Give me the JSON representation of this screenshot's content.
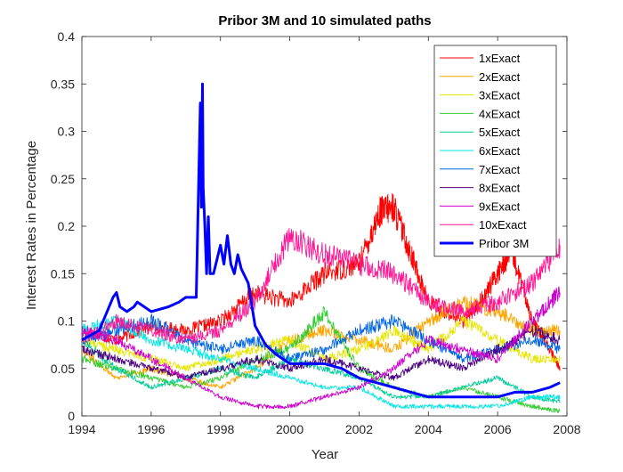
{
  "chart_data": {
    "type": "line",
    "title": "Pribor 3M and 10 simulated paths",
    "xlabel": "Year",
    "ylabel": "Interest Rates in Percentage",
    "xlim": [
      1994,
      2008
    ],
    "ylim": [
      0,
      0.4
    ],
    "xticks": [
      "1994",
      "1996",
      "1998",
      "2000",
      "2002",
      "2004",
      "2006",
      "2008"
    ],
    "yticks": [
      "0",
      "0.05",
      "0.1",
      "0.15",
      "0.2",
      "0.25",
      "0.3",
      "0.35",
      "0.4"
    ],
    "grid": false,
    "legend_position": "top-right",
    "series": [
      {
        "name": "1xExact",
        "color": "#ff0000",
        "line_width": "thin",
        "x": [
          1994.0,
          1995.0,
          1996.0,
          1997.0,
          1998.0,
          1999.0,
          2000.0,
          2001.0,
          2002.0,
          2002.6,
          2003.0,
          2003.5,
          2004.0,
          2005.0,
          2005.5,
          2006.0,
          2006.4,
          2007.0,
          2007.5,
          2007.8
        ],
        "y": [
          0.09,
          0.08,
          0.095,
          0.09,
          0.1,
          0.13,
          0.12,
          0.15,
          0.16,
          0.215,
          0.22,
          0.17,
          0.12,
          0.1,
          0.12,
          0.15,
          0.175,
          0.1,
          0.07,
          0.05
        ]
      },
      {
        "name": "2xExact",
        "color": "#ffa500",
        "line_width": "thin",
        "x": [
          1994.0,
          1995.0,
          1996.0,
          1997.0,
          1998.0,
          1999.0,
          2000.0,
          2001.0,
          2002.0,
          2003.0,
          2004.0,
          2005.0,
          2006.0,
          2007.0,
          2007.8
        ],
        "y": [
          0.07,
          0.04,
          0.05,
          0.04,
          0.03,
          0.05,
          0.08,
          0.09,
          0.08,
          0.07,
          0.1,
          0.12,
          0.11,
          0.09,
          0.09
        ]
      },
      {
        "name": "3xExact",
        "color": "#e6e600",
        "line_width": "thin",
        "x": [
          1994.0,
          1995.0,
          1996.0,
          1997.0,
          1998.0,
          1999.0,
          2000.0,
          2001.0,
          2002.0,
          2003.0,
          2004.0,
          2005.0,
          2006.0,
          2007.0,
          2007.8
        ],
        "y": [
          0.08,
          0.07,
          0.06,
          0.05,
          0.06,
          0.07,
          0.08,
          0.06,
          0.07,
          0.09,
          0.07,
          0.1,
          0.08,
          0.06,
          0.06
        ]
      },
      {
        "name": "4xExact",
        "color": "#33cc33",
        "line_width": "thin",
        "x": [
          1994.0,
          1995.0,
          1996.0,
          1997.0,
          1998.0,
          1999.0,
          2000.0,
          2001.0,
          2002.0,
          2003.0,
          2004.0,
          2005.0,
          2006.0,
          2007.0,
          2007.8
        ],
        "y": [
          0.06,
          0.05,
          0.04,
          0.03,
          0.04,
          0.06,
          0.07,
          0.11,
          0.05,
          0.03,
          0.02,
          0.03,
          0.02,
          0.01,
          0.005
        ]
      },
      {
        "name": "5xExact",
        "color": "#00cc99",
        "line_width": "thin",
        "x": [
          1994.0,
          1995.0,
          1996.0,
          1997.0,
          1998.0,
          1999.0,
          2000.0,
          2001.0,
          2002.0,
          2003.0,
          2004.0,
          2005.0,
          2006.0,
          2007.0,
          2007.8
        ],
        "y": [
          0.08,
          0.05,
          0.03,
          0.04,
          0.05,
          0.04,
          0.06,
          0.05,
          0.04,
          0.02,
          0.02,
          0.03,
          0.04,
          0.02,
          0.015
        ]
      },
      {
        "name": "6xExact",
        "color": "#00e5e5",
        "line_width": "thin",
        "x": [
          1994.0,
          1995.0,
          1996.0,
          1997.0,
          1998.0,
          1999.0,
          2000.0,
          2001.0,
          2002.0,
          2003.0,
          2004.0,
          2005.0,
          2006.0,
          2007.0,
          2007.8
        ],
        "y": [
          0.09,
          0.1,
          0.08,
          0.07,
          0.06,
          0.05,
          0.04,
          0.03,
          0.03,
          0.01,
          0.01,
          0.01,
          0.01,
          0.02,
          0.02
        ]
      },
      {
        "name": "7xExact",
        "color": "#0066e6",
        "line_width": "thin",
        "x": [
          1994.0,
          1995.0,
          1996.0,
          1997.0,
          1998.0,
          1999.0,
          2000.0,
          2001.0,
          2002.0,
          2003.0,
          2004.0,
          2005.0,
          2006.0,
          2007.0,
          2007.8
        ],
        "y": [
          0.08,
          0.09,
          0.1,
          0.08,
          0.07,
          0.08,
          0.06,
          0.07,
          0.09,
          0.1,
          0.08,
          0.06,
          0.07,
          0.08,
          0.07
        ]
      },
      {
        "name": "8xExact",
        "color": "#4b0082",
        "line_width": "thin",
        "x": [
          1994.0,
          1995.0,
          1996.0,
          1997.0,
          1998.0,
          1999.0,
          2000.0,
          2001.0,
          2002.0,
          2003.0,
          2004.0,
          2005.0,
          2006.0,
          2007.0,
          2007.8
        ],
        "y": [
          0.07,
          0.06,
          0.05,
          0.04,
          0.05,
          0.06,
          0.05,
          0.06,
          0.05,
          0.04,
          0.06,
          0.05,
          0.07,
          0.09,
          0.08
        ]
      },
      {
        "name": "9xExact",
        "color": "#cc00cc",
        "line_width": "thin",
        "x": [
          1994.0,
          1995.0,
          1996.0,
          1997.0,
          1998.0,
          1999.0,
          2000.0,
          2001.0,
          2002.0,
          2003.0,
          2004.0,
          2005.0,
          2006.0,
          2007.0,
          2007.8
        ],
        "y": [
          0.09,
          0.08,
          0.06,
          0.04,
          0.02,
          0.01,
          0.01,
          0.02,
          0.03,
          0.05,
          0.08,
          0.07,
          0.06,
          0.1,
          0.13
        ]
      },
      {
        "name": "10xExact",
        "color": "#ff1493",
        "line_width": "thin",
        "x": [
          1994.0,
          1995.0,
          1996.0,
          1997.0,
          1998.0,
          1999.0,
          2000.0,
          2001.0,
          2002.0,
          2003.0,
          2004.0,
          2005.0,
          2006.0,
          2007.0,
          2007.8
        ],
        "y": [
          0.08,
          0.1,
          0.09,
          0.08,
          0.09,
          0.12,
          0.19,
          0.17,
          0.16,
          0.15,
          0.12,
          0.11,
          0.12,
          0.14,
          0.18
        ]
      },
      {
        "name": "Pribor 3M",
        "color": "#0000ff",
        "line_width": "thick",
        "x": [
          1994.0,
          1994.5,
          1994.9,
          1995.0,
          1995.1,
          1995.3,
          1995.5,
          1995.6,
          1995.8,
          1996.0,
          1996.5,
          1996.8,
          1997.0,
          1997.3,
          1997.42,
          1997.45,
          1997.48,
          1997.5,
          1997.55,
          1997.6,
          1997.65,
          1997.7,
          1997.8,
          1998.0,
          1998.1,
          1998.2,
          1998.3,
          1998.4,
          1998.5,
          1998.6,
          1998.8,
          1999.0,
          1999.3,
          1999.6,
          2000.0,
          2000.5,
          2001.0,
          2001.5,
          2002.0,
          2002.5,
          2003.0,
          2003.5,
          2004.0,
          2004.5,
          2005.0,
          2005.5,
          2006.0,
          2006.5,
          2007.0,
          2007.5,
          2007.8
        ],
        "y": [
          0.08,
          0.09,
          0.125,
          0.13,
          0.115,
          0.11,
          0.115,
          0.12,
          0.115,
          0.11,
          0.115,
          0.12,
          0.125,
          0.125,
          0.33,
          0.22,
          0.35,
          0.24,
          0.2,
          0.15,
          0.21,
          0.15,
          0.15,
          0.18,
          0.16,
          0.19,
          0.16,
          0.15,
          0.17,
          0.155,
          0.14,
          0.095,
          0.075,
          0.065,
          0.055,
          0.055,
          0.055,
          0.05,
          0.04,
          0.035,
          0.03,
          0.025,
          0.02,
          0.02,
          0.02,
          0.02,
          0.02,
          0.025,
          0.025,
          0.03,
          0.035
        ]
      }
    ]
  }
}
